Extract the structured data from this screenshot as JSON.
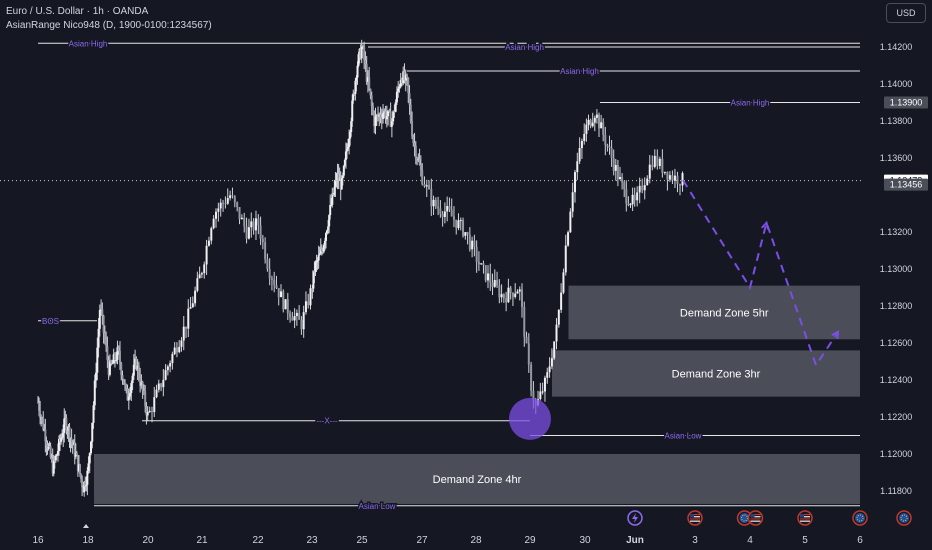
{
  "header": {
    "title": "Euro / U.S. Dollar · 1h · OANDA",
    "indicator": "AsianRange Nico948 (D, 1900-0100:1234567)"
  },
  "currency_button": "USD",
  "colors": {
    "background": "#151822",
    "candle": "#d1d4dc",
    "line": "#e6e6e6",
    "label": "#8f69f0",
    "zone": "#787b86",
    "projection": "#7b4ee6"
  },
  "chart_data": {
    "type": "candlestick",
    "symbol": "EURUSD",
    "timeframe": "1h",
    "ylim": [
      1.117,
      1.143
    ],
    "y_ticks": [
      1.142,
      1.14,
      1.138,
      1.136,
      1.132,
      1.13,
      1.128,
      1.126,
      1.124,
      1.122,
      1.12,
      1.118
    ],
    "y_tick_labels": [
      "1.14200",
      "1.14000",
      "1.13800",
      "1.13600",
      "1.13200",
      "1.13000",
      "1.12800",
      "1.12600",
      "1.12400",
      "1.12200",
      "1.12000",
      "1.11800"
    ],
    "x_labels": [
      {
        "label": "16",
        "t": 0
      },
      {
        "label": "18",
        "t": 2
      },
      {
        "label": "20",
        "t": 4
      },
      {
        "label": "21",
        "t": 5
      },
      {
        "label": "22",
        "t": 6
      },
      {
        "label": "23",
        "t": 7
      },
      {
        "label": "25",
        "t": 9
      },
      {
        "label": "27",
        "t": 11
      },
      {
        "label": "28",
        "t": 12
      },
      {
        "label": "29",
        "t": 13
      },
      {
        "label": "30",
        "t": 14
      },
      {
        "label": "Jun",
        "t": 15
      },
      {
        "label": "3",
        "t": 16
      },
      {
        "label": "4",
        "t": 17
      },
      {
        "label": "5",
        "t": 18
      },
      {
        "label": "6",
        "t": 19
      }
    ],
    "price_path": [
      [
        0.0,
        1.1228
      ],
      [
        0.6,
        1.1192
      ],
      [
        1.1,
        1.1218
      ],
      [
        1.5,
        1.12
      ],
      [
        1.8,
        1.1182
      ],
      [
        2.0,
        1.119
      ],
      [
        2.2,
        1.123
      ],
      [
        2.4,
        1.128
      ],
      [
        2.7,
        1.1245
      ],
      [
        3.0,
        1.1255
      ],
      [
        3.3,
        1.123
      ],
      [
        3.6,
        1.125
      ],
      [
        4.0,
        1.122
      ],
      [
        4.4,
        1.125
      ],
      [
        4.7,
        1.127
      ],
      [
        5.0,
        1.13
      ],
      [
        5.2,
        1.133
      ],
      [
        5.5,
        1.134
      ],
      [
        5.8,
        1.132
      ],
      [
        6.0,
        1.1325
      ],
      [
        6.2,
        1.13
      ],
      [
        6.5,
        1.128
      ],
      [
        6.8,
        1.127
      ],
      [
        7.1,
        1.13
      ],
      [
        7.4,
        1.131
      ],
      [
        7.7,
        1.133
      ],
      [
        8.0,
        1.135
      ],
      [
        8.2,
        1.1345
      ],
      [
        8.5,
        1.1375
      ],
      [
        8.8,
        1.141
      ],
      [
        9.0,
        1.142
      ],
      [
        9.2,
        1.14
      ],
      [
        9.4,
        1.138
      ],
      [
        9.7,
        1.1385
      ],
      [
        10.0,
        1.138
      ],
      [
        10.3,
        1.1405
      ],
      [
        10.5,
        1.14
      ],
      [
        10.7,
        1.137
      ],
      [
        11.0,
        1.135
      ],
      [
        11.2,
        1.1335
      ],
      [
        11.5,
        1.133
      ],
      [
        11.8,
        1.132
      ],
      [
        12.1,
        1.13
      ],
      [
        12.5,
        1.1285
      ],
      [
        12.8,
        1.129
      ],
      [
        13.0,
        1.124
      ],
      [
        13.1,
        1.1225
      ],
      [
        13.3,
        1.124
      ],
      [
        13.5,
        1.127
      ],
      [
        13.6,
        1.13
      ],
      [
        13.8,
        1.135
      ],
      [
        14.0,
        1.1375
      ],
      [
        14.2,
        1.1385
      ],
      [
        14.4,
        1.137
      ],
      [
        14.6,
        1.1355
      ],
      [
        14.8,
        1.134
      ],
      [
        15.0,
        1.1335
      ],
      [
        15.3,
        1.136
      ],
      [
        15.6,
        1.135
      ],
      [
        15.8,
        1.1348
      ]
    ],
    "last_price": {
      "value": 1.13478,
      "label": "1.13478"
    },
    "price_label_2": {
      "value": 1.13456,
      "label": "1.13456"
    },
    "price_label_3": {
      "value": 1.139,
      "label": "1.13900"
    },
    "levels": [
      {
        "label": "Asian High",
        "price": 1.1422,
        "t0": 0.0,
        "t1": 19.0,
        "label_t": 2.0
      },
      {
        "label": "Asian High",
        "price": 1.142,
        "t0": 9.2,
        "t1": 19.0,
        "label_t": 12.9
      },
      {
        "label": "Asian High",
        "price": 1.1407,
        "t0": 10.5,
        "t1": 19.0,
        "label_t": 13.9
      },
      {
        "label": "Asian High",
        "price": 1.139,
        "t0": 14.3,
        "t1": 19.0,
        "label_t": 17.0
      },
      {
        "label": "BOS",
        "price": 1.1272,
        "t0": 0.0,
        "t1": 2.3,
        "label_t": 0.5
      },
      {
        "label": "---X---",
        "price": 1.1218,
        "t0": 3.8,
        "t1": 13.0,
        "label_t": 7.6
      },
      {
        "label": "Asian Low",
        "price": 1.121,
        "t0": 13.0,
        "t1": 19.0,
        "label_t": 15.8
      },
      {
        "label": "Asian Low",
        "price": 1.1172,
        "t0": 2.2,
        "t1": 19.0,
        "label_t": 9.5
      }
    ],
    "zones": [
      {
        "label": "Demand Zone 5hr",
        "t0": 13.7,
        "t1": 19.0,
        "top": 1.1291,
        "bottom": 1.1262
      },
      {
        "label": "Demand Zone 3hr",
        "t0": 13.4,
        "t1": 19.0,
        "top": 1.1256,
        "bottom": 1.1231
      },
      {
        "label": "Demand Zone 4hr",
        "t0": 2.2,
        "t1": 19.0,
        "top": 1.12,
        "bottom": 1.1173
      }
    ],
    "projection": [
      [
        15.8,
        1.1348
      ],
      [
        17.0,
        1.129
      ],
      [
        17.3,
        1.1325
      ],
      [
        18.2,
        1.1248
      ],
      [
        18.6,
        1.1266
      ]
    ],
    "marker_circle": {
      "t": 13.0,
      "price": 1.1219
    },
    "event_icons": [
      {
        "t": 15.0,
        "kind": "lightning-icon"
      },
      {
        "t": 16.0,
        "kind": "us-flag-icon"
      },
      {
        "t": 16.9,
        "kind": "eu-flag-icon"
      },
      {
        "t": 17.1,
        "kind": "us-flag-icon"
      },
      {
        "t": 18.0,
        "kind": "us-flag-icon"
      },
      {
        "t": 19.0,
        "kind": "eu-flag-icon"
      },
      {
        "t": 19.8,
        "kind": "eu-flag-icon"
      }
    ]
  }
}
